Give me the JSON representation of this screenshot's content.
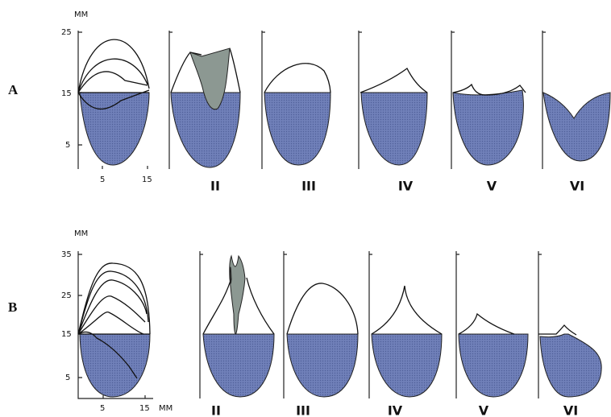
{
  "panels": [
    {
      "label": "A",
      "y_unit": "MM",
      "y_labels": [
        "25",
        "15",
        "5"
      ],
      "x_labels": [
        "5",
        "15"
      ],
      "types": [
        "II",
        "III",
        "IV",
        "V",
        "VI"
      ]
    },
    {
      "label": "B",
      "y_unit": "MM",
      "y_labels": [
        "35",
        "25",
        "15",
        "5"
      ],
      "x_labels": [
        "5",
        "15",
        "MM"
      ],
      "types": [
        "II",
        "III",
        "IV",
        "V",
        "VI"
      ]
    }
  ]
}
